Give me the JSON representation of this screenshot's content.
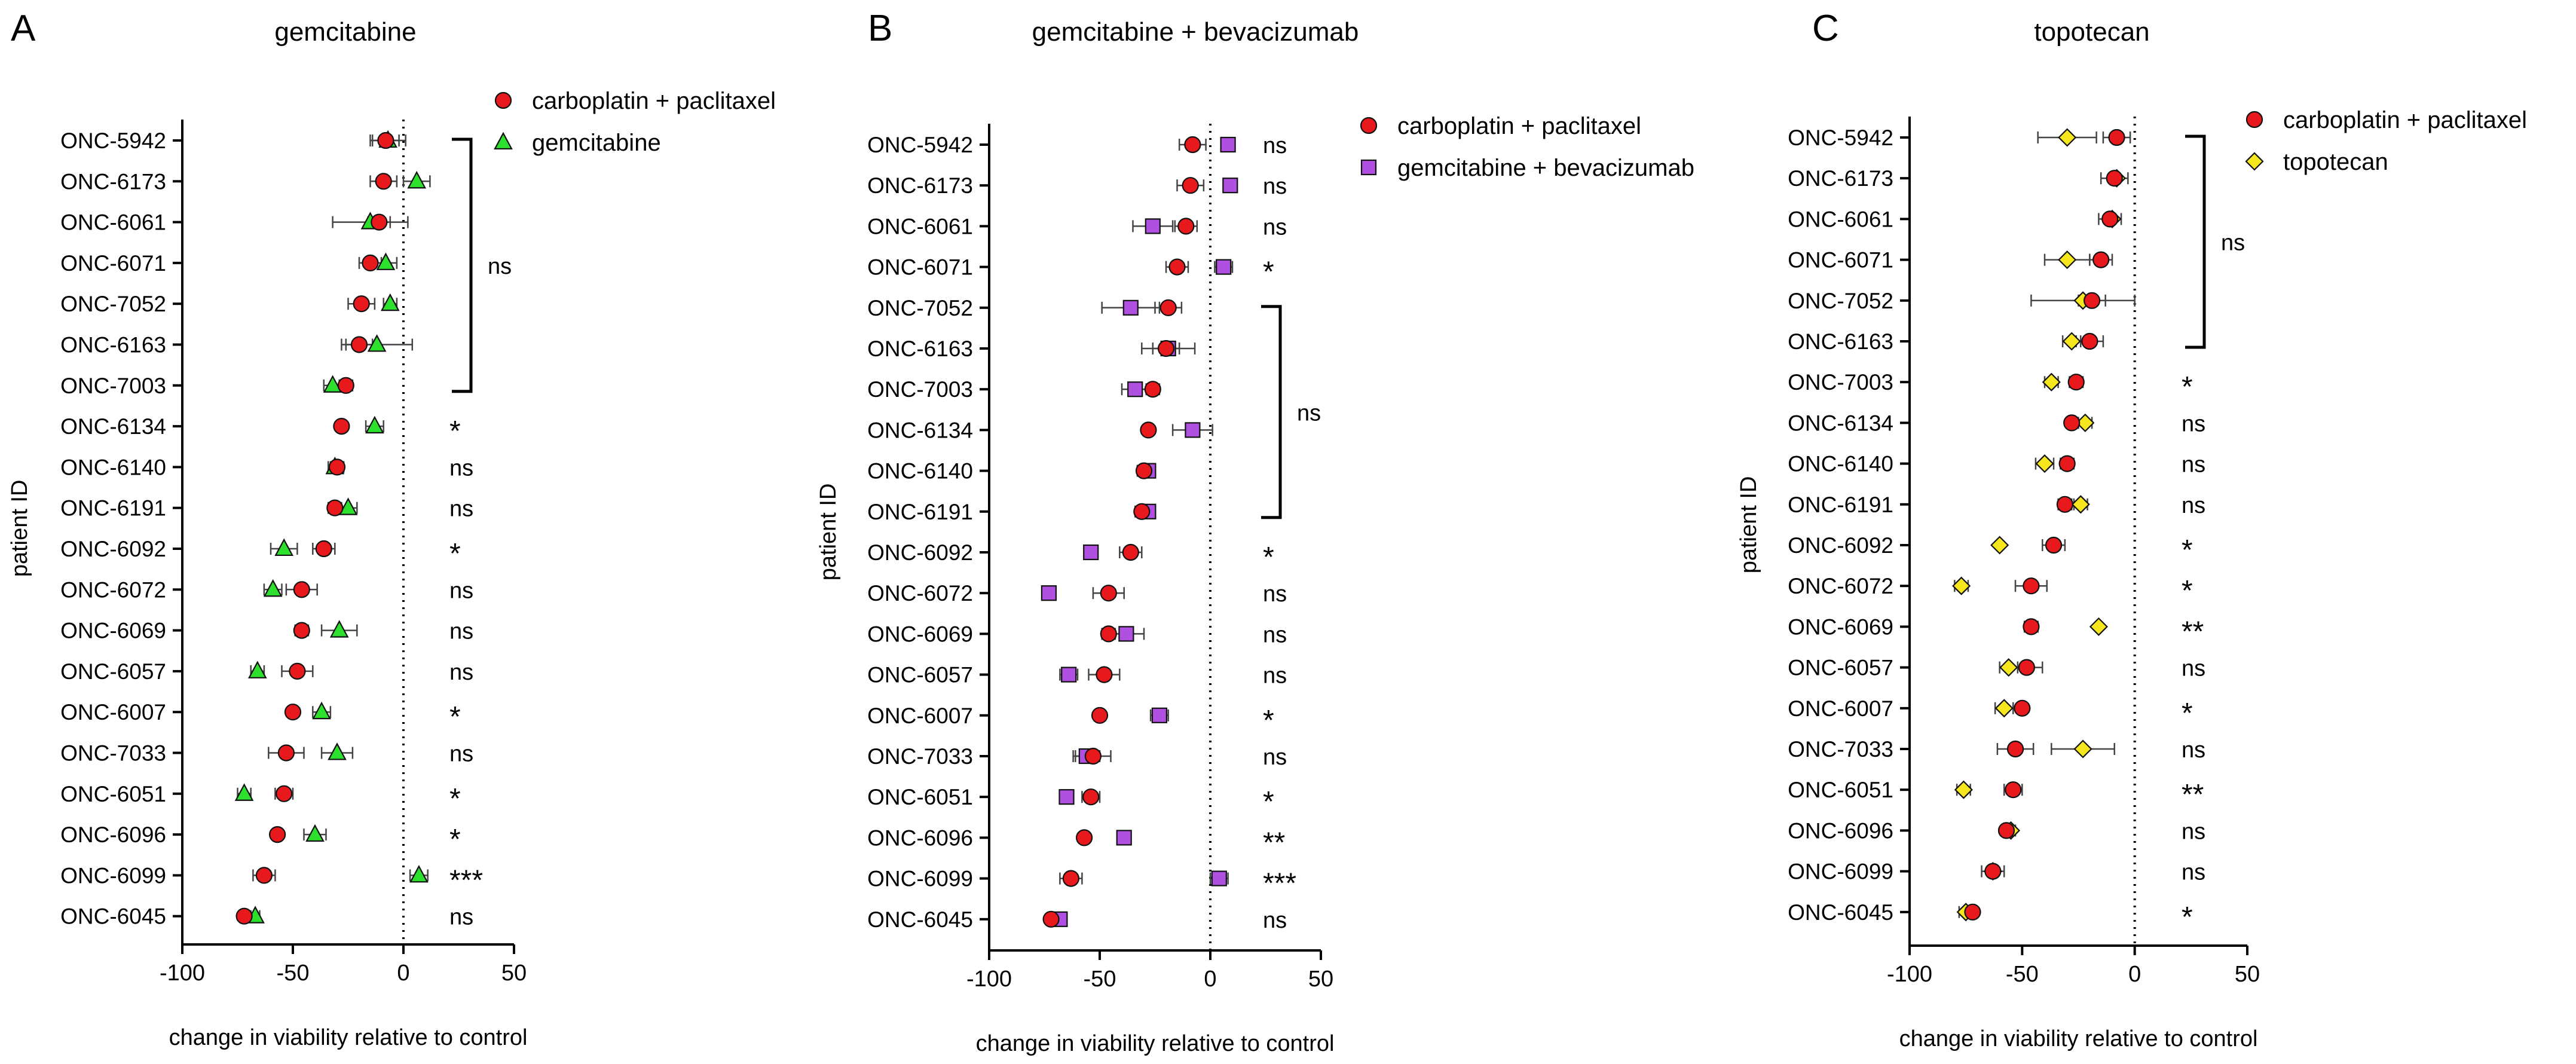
{
  "chart_data": [
    {
      "type": "scatter",
      "panel_letter": "A",
      "title": "gemcitabine",
      "xlabel": "change in viability relative to control",
      "ylabel": "patient ID",
      "xlim": [
        -100,
        50
      ],
      "xticks": [
        -100,
        -50,
        0,
        50
      ],
      "reference_line": 0,
      "legend_position": "top-right",
      "patients": [
        "ONC-5942",
        "ONC-6173",
        "ONC-6061",
        "ONC-6071",
        "ONC-7052",
        "ONC-6163",
        "ONC-7003",
        "ONC-6134",
        "ONC-6140",
        "ONC-6191",
        "ONC-6092",
        "ONC-6072",
        "ONC-6069",
        "ONC-6057",
        "ONC-6007",
        "ONC-7033",
        "ONC-6051",
        "ONC-6096",
        "ONC-6099",
        "ONC-6045"
      ],
      "series": [
        {
          "name": "carboplatin + paclitaxel",
          "marker": "circle",
          "color": "#e8191c",
          "values": [
            -8,
            -9,
            -11,
            -15,
            -19,
            -20,
            -26,
            -28,
            -30,
            -31,
            -36,
            -46,
            -46,
            -48,
            -50,
            -53,
            -54,
            -57,
            -63,
            -72
          ],
          "error": [
            6,
            6,
            5,
            5,
            6,
            6,
            3,
            2,
            3,
            3,
            5,
            7,
            3,
            7,
            2,
            8,
            4,
            2,
            5,
            2
          ]
        },
        {
          "name": "gemcitabine",
          "marker": "triangle",
          "color": "#2ee02e",
          "values": [
            -7,
            6,
            -15,
            -8,
            -6,
            -12,
            -32,
            -13,
            -31,
            -25,
            -54,
            -59,
            -29,
            -66,
            -37,
            -30,
            -72,
            -40,
            7,
            -67
          ],
          "error": [
            8,
            6,
            17,
            5,
            3,
            16,
            4,
            4,
            3,
            4,
            6,
            4,
            8,
            3,
            4,
            7,
            3,
            5,
            4,
            2
          ]
        }
      ],
      "significance": [
        "",
        "",
        "",
        "",
        "",
        "",
        "",
        "*",
        "ns",
        "ns",
        "*",
        "ns",
        "ns",
        "ns",
        "*",
        "ns",
        "*",
        "*",
        "***",
        "ns"
      ],
      "bracket": {
        "from": "ONC-5942",
        "to": "ONC-7003",
        "label": "ns"
      }
    },
    {
      "type": "scatter",
      "panel_letter": "B",
      "title": "gemcitabine + bevacizumab",
      "xlabel": "change in viability relative to control",
      "ylabel": "patient ID",
      "xlim": [
        -100,
        50
      ],
      "xticks": [
        -100,
        -50,
        0,
        50
      ],
      "reference_line": 0,
      "legend_position": "top-right",
      "patients": [
        "ONC-5942",
        "ONC-6173",
        "ONC-6061",
        "ONC-6071",
        "ONC-7052",
        "ONC-6163",
        "ONC-7003",
        "ONC-6134",
        "ONC-6140",
        "ONC-6191",
        "ONC-6092",
        "ONC-6072",
        "ONC-6069",
        "ONC-6057",
        "ONC-6007",
        "ONC-7033",
        "ONC-6051",
        "ONC-6096",
        "ONC-6099",
        "ONC-6045"
      ],
      "series": [
        {
          "name": "carboplatin + paclitaxel",
          "marker": "circle",
          "color": "#e8191c",
          "values": [
            -8,
            -9,
            -11,
            -15,
            -19,
            -20,
            -26,
            -28,
            -30,
            -31,
            -36,
            -46,
            -46,
            -48,
            -50,
            -53,
            -54,
            -57,
            -63,
            -72
          ],
          "error": [
            6,
            6,
            5,
            5,
            6,
            6,
            3,
            2,
            3,
            3,
            5,
            7,
            3,
            7,
            2,
            8,
            4,
            2,
            5,
            2
          ]
        },
        {
          "name": "gemcitabine + bevacizumab",
          "marker": "square",
          "color": "#b050e0",
          "values": [
            8,
            9,
            -26,
            6,
            -36,
            -19,
            -34,
            -8,
            -28,
            -28,
            -54,
            -73,
            -38,
            -64,
            -23,
            -56,
            -65,
            -39,
            4,
            -68
          ],
          "error": [
            0,
            0,
            9,
            4,
            13,
            12,
            6,
            9,
            3,
            3,
            0,
            0,
            8,
            4,
            4,
            6,
            0,
            0,
            4,
            0
          ]
        }
      ],
      "significance": [
        "ns",
        "ns",
        "ns",
        "*",
        "",
        "",
        "",
        "",
        "",
        "",
        "*",
        "ns",
        "ns",
        "ns",
        "*",
        "ns",
        "*",
        "**",
        "***",
        "ns"
      ],
      "bracket": {
        "from": "ONC-7052",
        "to": "ONC-6191",
        "label": "ns"
      }
    },
    {
      "type": "scatter",
      "panel_letter": "C",
      "title": "topotecan",
      "xlabel": "change in viability relative to control",
      "ylabel": "patient ID",
      "xlim": [
        -100,
        50
      ],
      "xticks": [
        -100,
        -50,
        0,
        50
      ],
      "reference_line": 0,
      "legend_position": "top-right",
      "patients": [
        "ONC-5942",
        "ONC-6173",
        "ONC-6061",
        "ONC-6071",
        "ONC-7052",
        "ONC-6163",
        "ONC-7003",
        "ONC-6134",
        "ONC-6140",
        "ONC-6191",
        "ONC-6092",
        "ONC-6072",
        "ONC-6069",
        "ONC-6057",
        "ONC-6007",
        "ONC-7033",
        "ONC-6051",
        "ONC-6096",
        "ONC-6099",
        "ONC-6045"
      ],
      "series": [
        {
          "name": "carboplatin + paclitaxel",
          "marker": "circle",
          "color": "#e8191c",
          "values": [
            -8,
            -9,
            -11,
            -15,
            -19,
            -20,
            -26,
            -28,
            -30,
            -31,
            -36,
            -46,
            -46,
            -48,
            -50,
            -53,
            -54,
            -57,
            -63,
            -72
          ],
          "error": [
            6,
            6,
            5,
            5,
            6,
            6,
            3,
            2,
            3,
            3,
            5,
            7,
            3,
            7,
            2,
            8,
            4,
            2,
            5,
            2
          ]
        },
        {
          "name": "topotecan",
          "marker": "diamond",
          "color": "#f5e61e",
          "values": [
            -30,
            -8,
            -10,
            -30,
            -23,
            -28,
            -37,
            -22,
            -40,
            -24,
            -60,
            -77,
            -16,
            -56,
            -58,
            -23,
            -76,
            -55,
            -63,
            -75
          ],
          "error": [
            13,
            0,
            0,
            10,
            23,
            4,
            3,
            3,
            4,
            3,
            0,
            3,
            0,
            4,
            4,
            14,
            3,
            2,
            0,
            3
          ]
        }
      ],
      "significance": [
        "",
        "",
        "",
        "",
        "",
        "",
        "*",
        "ns",
        "ns",
        "ns",
        "*",
        "*",
        "**",
        "ns",
        "*",
        "ns",
        "**",
        "ns",
        "ns",
        "*"
      ],
      "bracket": {
        "from": "ONC-5942",
        "to": "ONC-6163",
        "label": "ns"
      }
    }
  ]
}
